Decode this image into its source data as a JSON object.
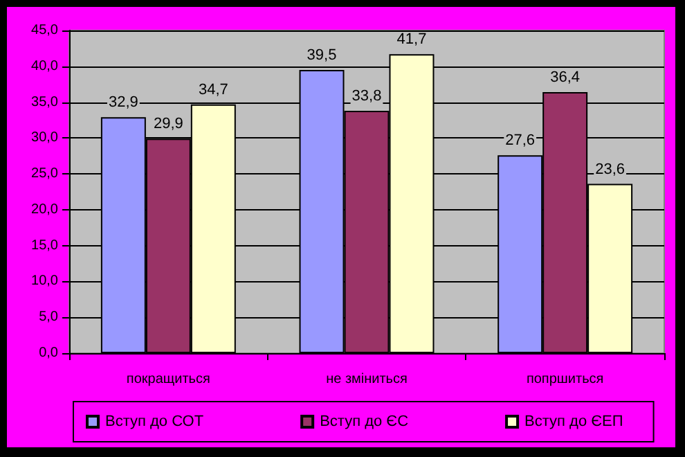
{
  "chart_data": {
    "type": "bar",
    "categories": [
      "покращиться",
      "не зміниться",
      "попршиться"
    ],
    "series": [
      {
        "name": "Вступ до СОТ",
        "color": "#9999ff",
        "values": [
          32.9,
          39.5,
          27.6
        ],
        "value_labels": [
          "32,9",
          "39,5",
          "27,6"
        ]
      },
      {
        "name": "Вступ до ЄС",
        "color": "#993366",
        "values": [
          29.9,
          33.8,
          36.4
        ],
        "value_labels": [
          "29,9",
          "33,8",
          "36,4"
        ]
      },
      {
        "name": "Вступ до ЄЕП",
        "color": "#ffffcc",
        "values": [
          34.7,
          41.7,
          23.6
        ],
        "value_labels": [
          "34,7",
          "41,7",
          "23,6"
        ]
      }
    ],
    "ylim": [
      0,
      45
    ],
    "yticks": [
      {
        "value": 0,
        "label": "0,0"
      },
      {
        "value": 5,
        "label": "5,0"
      },
      {
        "value": 10,
        "label": "10,0"
      },
      {
        "value": 15,
        "label": "15,0"
      },
      {
        "value": 20,
        "label": "20,0"
      },
      {
        "value": 25,
        "label": "25,0"
      },
      {
        "value": 30,
        "label": "30,0"
      },
      {
        "value": 35,
        "label": "35,0"
      },
      {
        "value": 40,
        "label": "40,0"
      },
      {
        "value": 45,
        "label": "45,0"
      }
    ],
    "grid": "y",
    "legend": "bottom"
  }
}
